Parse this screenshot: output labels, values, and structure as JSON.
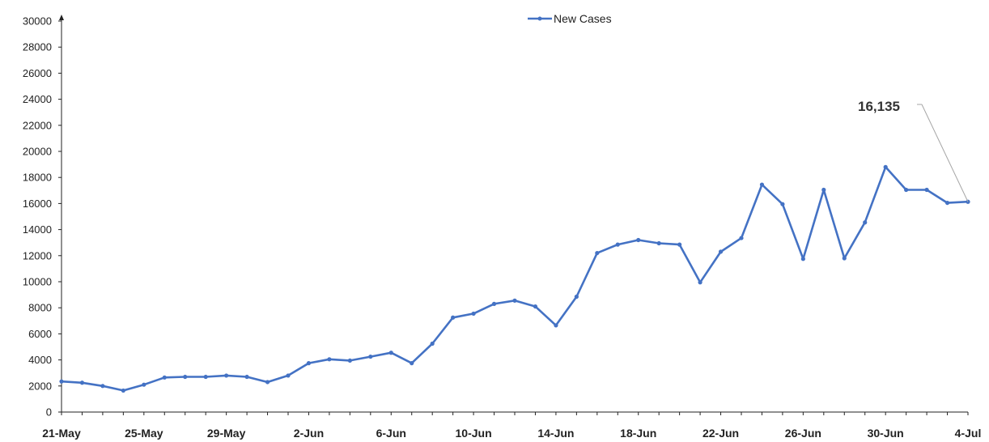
{
  "chart_data": {
    "type": "line",
    "x": [
      "21-May",
      "22-May",
      "23-May",
      "24-May",
      "25-May",
      "26-May",
      "27-May",
      "28-May",
      "29-May",
      "30-May",
      "31-May",
      "1-Jun",
      "2-Jun",
      "3-Jun",
      "4-Jun",
      "5-Jun",
      "6-Jun",
      "7-Jun",
      "8-Jun",
      "9-Jun",
      "10-Jun",
      "11-Jun",
      "12-Jun",
      "13-Jun",
      "14-Jun",
      "15-Jun",
      "16-Jun",
      "17-Jun",
      "18-Jun",
      "19-Jun",
      "20-Jun",
      "21-Jun",
      "22-Jun",
      "23-Jun",
      "24-Jun",
      "25-Jun",
      "26-Jun",
      "27-Jun",
      "28-Jun",
      "29-Jun",
      "30-Jun",
      "1-Jul",
      "2-Jul",
      "3-Jul",
      "4-Jul"
    ],
    "x_tick_labels": [
      "21-May",
      "25-May",
      "29-May",
      "2-Jun",
      "6-Jun",
      "10-Jun",
      "14-Jun",
      "18-Jun",
      "22-Jun",
      "26-Jun",
      "30-Jun",
      "4-Jul"
    ],
    "series": [
      {
        "name": "New Cases",
        "color": "#4472C4",
        "values": [
          2350,
          2250,
          2000,
          1650,
          2100,
          2650,
          2700,
          2700,
          2800,
          2700,
          2300,
          2800,
          3750,
          4050,
          3950,
          4250,
          4550,
          3750,
          5250,
          7250,
          7550,
          8300,
          8550,
          8100,
          6650,
          8850,
          12200,
          12850,
          13200,
          12950,
          12850,
          9950,
          12300,
          13350,
          17450,
          15950,
          11750,
          17050,
          11800,
          14550,
          18800,
          17050,
          17050,
          16050,
          16135
        ]
      }
    ],
    "ylim": [
      0,
      30000
    ],
    "y_ticks": [
      0,
      2000,
      4000,
      6000,
      8000,
      10000,
      12000,
      14000,
      16000,
      18000,
      20000,
      22000,
      24000,
      26000,
      28000,
      30000
    ],
    "legend": {
      "position": "top-center",
      "label": "New Cases"
    },
    "annotation": {
      "text": "16,135",
      "target_x": "4-Jul",
      "target_value": 16135
    },
    "grid": false,
    "title": "",
    "xlabel": "",
    "ylabel": ""
  }
}
